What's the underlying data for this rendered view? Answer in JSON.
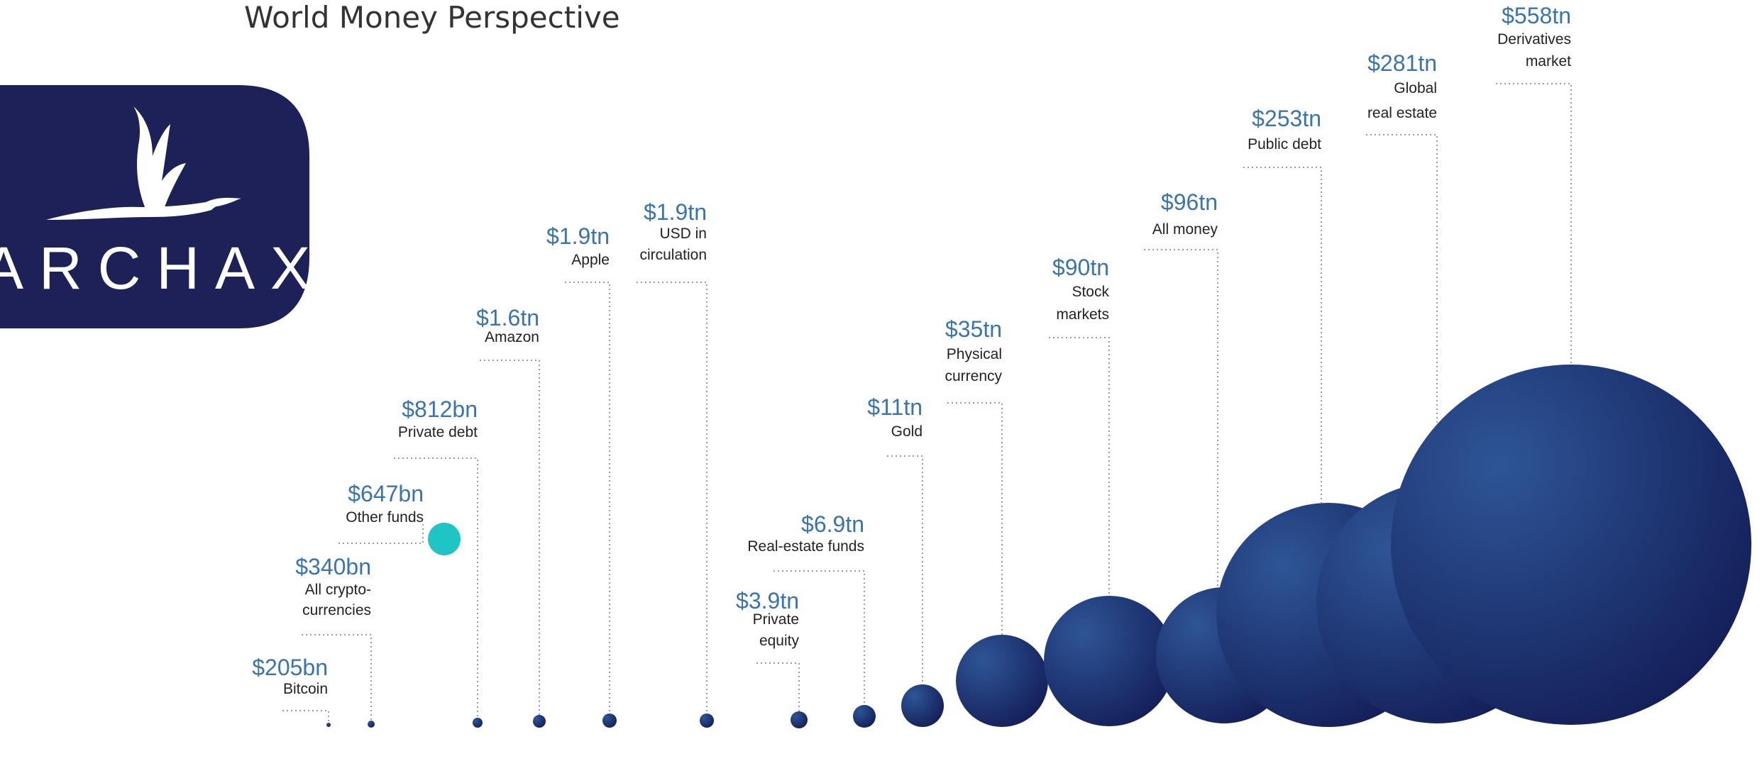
{
  "title": "World Money Perspective",
  "logo_text": "ARCHAX",
  "colors": {
    "value": "#3a74ae",
    "label": "#222222",
    "leader": "#9a9a9a",
    "bubble_dark": "#121c55",
    "bubble_light": "#2e5597",
    "highlight": "#1fc4c4",
    "logo_bg": "#1d2157"
  },
  "chart_data": {
    "type": "bubble",
    "title": "World Money Perspective",
    "unit": "US$",
    "items": [
      {
        "label": "Bitcoin",
        "value_text": "$205bn",
        "value_bn": 205
      },
      {
        "label": "All crypto-currencies",
        "value_text": "$340bn",
        "value_bn": 340
      },
      {
        "label": "Other funds",
        "value_text": "$647bn",
        "value_bn": 647,
        "highlight": true
      },
      {
        "label": "Private debt",
        "value_text": "$812bn",
        "value_bn": 812
      },
      {
        "label": "Amazon",
        "value_text": "$1.6tn",
        "value_bn": 1600
      },
      {
        "label": "Apple",
        "value_text": "$1.9tn",
        "value_bn": 1900
      },
      {
        "label": "USD in circulation",
        "value_text": "$1.9tn",
        "value_bn": 1900
      },
      {
        "label": "Private equity",
        "value_text": "$3.9tn",
        "value_bn": 3900
      },
      {
        "label": "Real-estate funds",
        "value_text": "$6.9tn",
        "value_bn": 6900
      },
      {
        "label": "Gold",
        "value_text": "$11tn",
        "value_bn": 11000
      },
      {
        "label": "Physical currency",
        "value_text": "$35tn",
        "value_bn": 35000
      },
      {
        "label": "Stock markets",
        "value_text": "$90tn",
        "value_bn": 90000
      },
      {
        "label": "All money",
        "value_text": "$96tn",
        "value_bn": 96000
      },
      {
        "label": "Public debt",
        "value_text": "$253tn",
        "value_bn": 253000
      },
      {
        "label": "Global real estate",
        "value_text": "$281tn",
        "value_bn": 281000
      },
      {
        "label": "Derivatives market",
        "value_text": "$558tn",
        "value_bn": 558000
      }
    ]
  }
}
